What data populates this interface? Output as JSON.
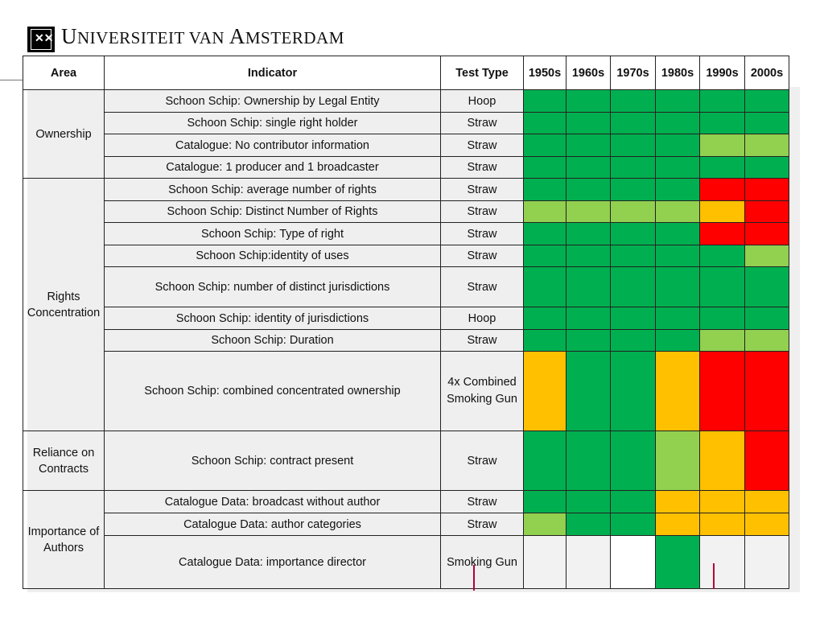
{
  "brand": {
    "prefix_u": "U",
    "prefix_rest": "NIVERSITEIT VAN ",
    "suffix_a": "A",
    "suffix_rest": "MSTERDAM",
    "logo_glyph": "✕✕✕"
  },
  "colors": {
    "dark_green": "#00b050",
    "light_green": "#92d050",
    "amber": "#ffc000",
    "red": "#ff0000",
    "white": "#ffffff",
    "blank": "#f2f2f2"
  },
  "headers": {
    "area": "Area",
    "indicator": "Indicator",
    "test_type": "Test Type",
    "decades": [
      "1950s",
      "1960s",
      "1970s",
      "1980s",
      "1990s",
      "2000s"
    ]
  },
  "areas": {
    "ownership": "Ownership",
    "rights": "Rights Concentration",
    "contracts": "Reliance on Contracts",
    "authors": "Importance of Authors"
  },
  "rows": [
    {
      "indicator": "Schoon Schip: Ownership by Legal Entity",
      "test": "Hoop",
      "ratings": [
        "G",
        "G",
        "G",
        "G",
        "G",
        "G"
      ]
    },
    {
      "indicator": "Schoon Schip: single right holder",
      "test": "Straw",
      "ratings": [
        "G",
        "G",
        "G",
        "G",
        "G",
        "G"
      ]
    },
    {
      "indicator": "Catalogue: No contributor information",
      "test": "Straw",
      "ratings": [
        "G",
        "G",
        "G",
        "G",
        "L",
        "L"
      ]
    },
    {
      "indicator": "Catalogue: 1 producer and 1 broadcaster",
      "test": "Straw",
      "ratings": [
        "G",
        "G",
        "G",
        "G",
        "G",
        "G"
      ]
    },
    {
      "indicator": "Schoon Schip: average number of rights",
      "test": "Straw",
      "ratings": [
        "G",
        "G",
        "G",
        "G",
        "R",
        "R"
      ]
    },
    {
      "indicator": "Schoon Schip: Distinct Number of Rights",
      "test": "Straw",
      "ratings": [
        "L",
        "L",
        "L",
        "L",
        "A",
        "R"
      ]
    },
    {
      "indicator": "Schoon Schip: Type of right",
      "test": "Straw",
      "ratings": [
        "G",
        "G",
        "G",
        "G",
        "R",
        "R"
      ]
    },
    {
      "indicator": "Schoon Schip:identity of uses",
      "test": "Straw",
      "ratings": [
        "G",
        "G",
        "G",
        "G",
        "G",
        "L"
      ]
    },
    {
      "indicator": "Schoon Schip: number of distinct jurisdictions",
      "test": "Straw",
      "ratings": [
        "G",
        "G",
        "G",
        "G",
        "G",
        "G"
      ]
    },
    {
      "indicator": "Schoon Schip: identity of jurisdictions",
      "test": "Hoop",
      "ratings": [
        "G",
        "G",
        "G",
        "G",
        "G",
        "G"
      ]
    },
    {
      "indicator": "Schoon Schip: Duration",
      "test": "Straw",
      "ratings": [
        "G",
        "G",
        "G",
        "G",
        "L",
        "L"
      ]
    },
    {
      "indicator": "Schoon Schip: combined concentrated ownership",
      "test": "4x Combined Smoking Gun",
      "ratings": [
        "A",
        "G",
        "G",
        "A",
        "R",
        "R"
      ]
    },
    {
      "indicator": "Schoon Schip: contract present",
      "test": "Straw",
      "ratings": [
        "G",
        "G",
        "G",
        "L",
        "A",
        "R"
      ]
    },
    {
      "indicator": "Catalogue Data: broadcast without author",
      "test": "Straw",
      "ratings": [
        "G",
        "G",
        "G",
        "A",
        "A",
        "A"
      ]
    },
    {
      "indicator": "Catalogue Data: author categories",
      "test": "Straw",
      "ratings": [
        "L",
        "G",
        "G",
        "A",
        "A",
        "A"
      ]
    },
    {
      "indicator": "Catalogue Data: importance director",
      "test": "Smoking Gun",
      "ratings": [
        "N",
        "N",
        "W",
        "G",
        "N",
        "N"
      ]
    }
  ]
}
